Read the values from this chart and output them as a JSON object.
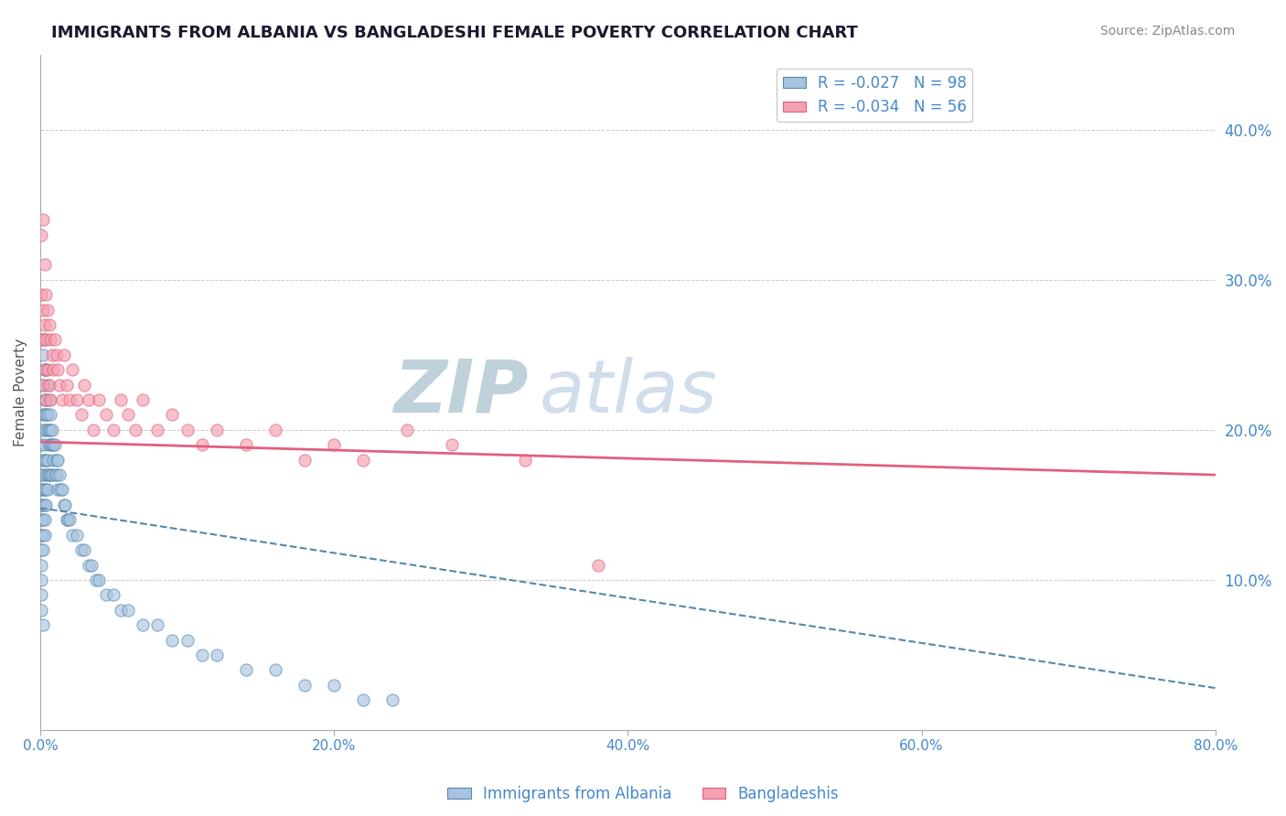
{
  "title": "IMMIGRANTS FROM ALBANIA VS BANGLADESHI FEMALE POVERTY CORRELATION CHART",
  "source": "Source: ZipAtlas.com",
  "ylabel": "Female Poverty",
  "legend_labels": [
    "Immigrants from Albania",
    "Bangladeshis"
  ],
  "xlim": [
    0.0,
    0.8
  ],
  "ylim": [
    0.0,
    0.45
  ],
  "xticks": [
    0.0,
    0.2,
    0.4,
    0.6,
    0.8
  ],
  "xtick_labels": [
    "0.0%",
    "20.0%",
    "40.0%",
    "60.0%",
    "80.0%"
  ],
  "yticks_right": [
    0.1,
    0.2,
    0.3,
    0.4
  ],
  "ytick_labels_right": [
    "10.0%",
    "20.0%",
    "30.0%",
    "40.0%"
  ],
  "background_color": "#ffffff",
  "grid_color": "#cccccc",
  "title_color": "#1a1a2e",
  "source_color": "#888888",
  "blue_scatter_color": "#a8c4e0",
  "pink_scatter_color": "#f4a0b0",
  "blue_line_color": "#5588aa",
  "pink_line_color": "#e06080",
  "axis_color": "#4488cc",
  "watermark_color": "#ccd8e8",
  "albania_R": -0.027,
  "albania_N": 98,
  "bangladesh_R": -0.034,
  "bangladesh_N": 56,
  "albania_trend_y_start": 0.148,
  "albania_trend_y_end": 0.028,
  "bangladesh_trend_y_start": 0.192,
  "bangladesh_trend_y_end": 0.17,
  "albania_points_x": [
    0.001,
    0.001,
    0.001,
    0.001,
    0.001,
    0.001,
    0.001,
    0.001,
    0.001,
    0.001,
    0.001,
    0.002,
    0.002,
    0.002,
    0.002,
    0.002,
    0.002,
    0.002,
    0.002,
    0.002,
    0.002,
    0.002,
    0.002,
    0.003,
    0.003,
    0.003,
    0.003,
    0.003,
    0.003,
    0.003,
    0.003,
    0.003,
    0.003,
    0.004,
    0.004,
    0.004,
    0.004,
    0.004,
    0.004,
    0.004,
    0.004,
    0.005,
    0.005,
    0.005,
    0.005,
    0.005,
    0.005,
    0.006,
    0.006,
    0.006,
    0.006,
    0.007,
    0.007,
    0.007,
    0.007,
    0.008,
    0.008,
    0.008,
    0.009,
    0.009,
    0.01,
    0.01,
    0.011,
    0.011,
    0.012,
    0.012,
    0.013,
    0.014,
    0.015,
    0.016,
    0.017,
    0.018,
    0.019,
    0.02,
    0.022,
    0.025,
    0.028,
    0.03,
    0.033,
    0.035,
    0.038,
    0.04,
    0.045,
    0.05,
    0.055,
    0.06,
    0.07,
    0.08,
    0.09,
    0.1,
    0.11,
    0.12,
    0.14,
    0.16,
    0.18,
    0.2,
    0.22,
    0.24
  ],
  "albania_points_y": [
    0.19,
    0.17,
    0.16,
    0.15,
    0.14,
    0.13,
    0.12,
    0.11,
    0.1,
    0.09,
    0.08,
    0.25,
    0.23,
    0.21,
    0.2,
    0.18,
    0.17,
    0.16,
    0.15,
    0.14,
    0.13,
    0.12,
    0.07,
    0.26,
    0.24,
    0.22,
    0.21,
    0.19,
    0.18,
    0.16,
    0.15,
    0.14,
    0.13,
    0.24,
    0.22,
    0.21,
    0.2,
    0.18,
    0.17,
    0.16,
    0.15,
    0.23,
    0.21,
    0.2,
    0.18,
    0.17,
    0.16,
    0.22,
    0.2,
    0.19,
    0.17,
    0.21,
    0.2,
    0.19,
    0.17,
    0.2,
    0.19,
    0.17,
    0.19,
    0.18,
    0.19,
    0.17,
    0.18,
    0.17,
    0.18,
    0.16,
    0.17,
    0.16,
    0.16,
    0.15,
    0.15,
    0.14,
    0.14,
    0.14,
    0.13,
    0.13,
    0.12,
    0.12,
    0.11,
    0.11,
    0.1,
    0.1,
    0.09,
    0.09,
    0.08,
    0.08,
    0.07,
    0.07,
    0.06,
    0.06,
    0.05,
    0.05,
    0.04,
    0.04,
    0.03,
    0.03,
    0.02,
    0.02
  ],
  "bangladesh_points_x": [
    0.001,
    0.001,
    0.001,
    0.002,
    0.002,
    0.002,
    0.002,
    0.003,
    0.003,
    0.003,
    0.004,
    0.004,
    0.004,
    0.005,
    0.005,
    0.006,
    0.006,
    0.007,
    0.007,
    0.008,
    0.009,
    0.01,
    0.011,
    0.012,
    0.013,
    0.015,
    0.016,
    0.018,
    0.02,
    0.022,
    0.025,
    0.028,
    0.03,
    0.033,
    0.036,
    0.04,
    0.045,
    0.05,
    0.055,
    0.06,
    0.065,
    0.07,
    0.08,
    0.09,
    0.1,
    0.11,
    0.12,
    0.14,
    0.16,
    0.18,
    0.2,
    0.22,
    0.25,
    0.28,
    0.33,
    0.38
  ],
  "bangladesh_points_y": [
    0.33,
    0.29,
    0.26,
    0.34,
    0.28,
    0.26,
    0.23,
    0.31,
    0.27,
    0.24,
    0.29,
    0.26,
    0.22,
    0.28,
    0.24,
    0.27,
    0.23,
    0.26,
    0.22,
    0.25,
    0.24,
    0.26,
    0.25,
    0.24,
    0.23,
    0.22,
    0.25,
    0.23,
    0.22,
    0.24,
    0.22,
    0.21,
    0.23,
    0.22,
    0.2,
    0.22,
    0.21,
    0.2,
    0.22,
    0.21,
    0.2,
    0.22,
    0.2,
    0.21,
    0.2,
    0.19,
    0.2,
    0.19,
    0.2,
    0.18,
    0.19,
    0.18,
    0.2,
    0.19,
    0.18,
    0.11
  ]
}
